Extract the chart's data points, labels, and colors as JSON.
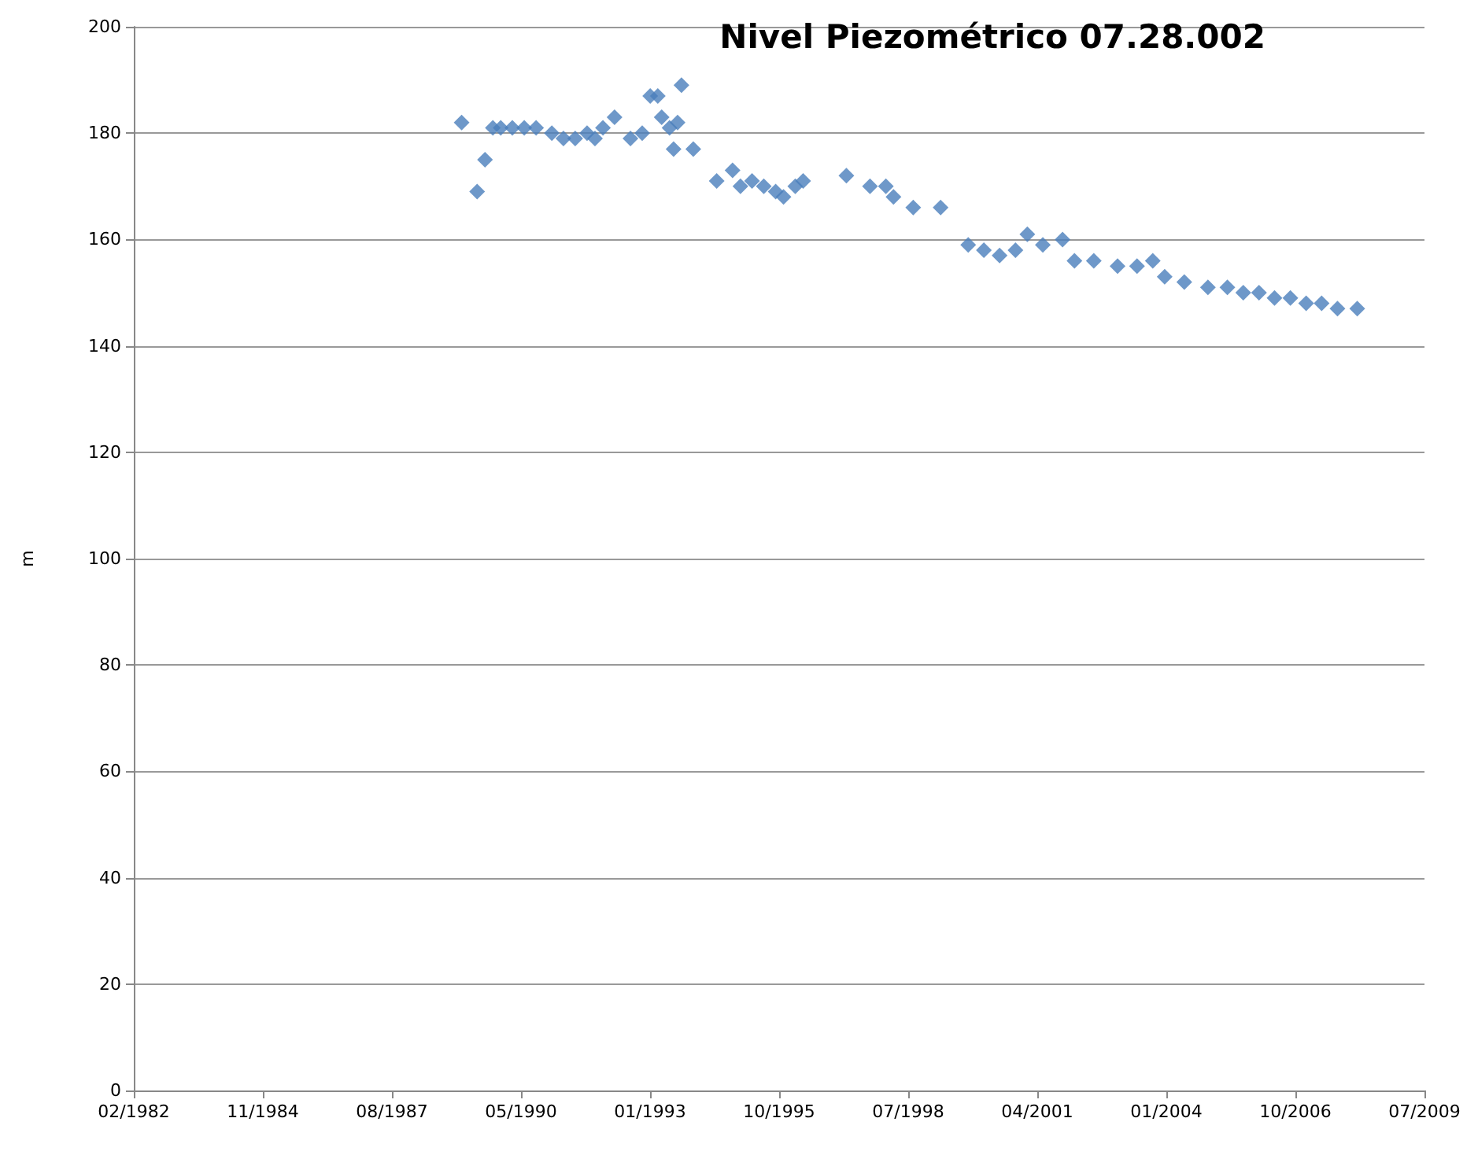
{
  "chart_data": {
    "type": "scatter",
    "title": "Nivel Piezométrico 07.28.002",
    "ylabel": "m",
    "x": [
      "1989-02",
      "1989-06",
      "1989-08",
      "1989-10",
      "1989-12",
      "1990-03",
      "1990-06",
      "1990-09",
      "1991-01",
      "1991-04",
      "1991-07",
      "1991-10",
      "1991-12",
      "1992-02",
      "1992-05",
      "1992-09",
      "1992-12",
      "1993-02",
      "1993-04",
      "1993-05",
      "1993-07",
      "1993-08",
      "1993-09",
      "1993-10",
      "1994-01",
      "1994-07",
      "1994-11",
      "1995-01",
      "1995-04",
      "1995-07",
      "1995-10",
      "1995-12",
      "1996-03",
      "1996-05",
      "1997-04",
      "1997-10",
      "1998-02",
      "1998-04",
      "1998-09",
      "1999-04",
      "1999-11",
      "2000-03",
      "2000-07",
      "2000-11",
      "2001-02",
      "2001-06",
      "2001-11",
      "2002-02",
      "2002-07",
      "2003-01",
      "2003-06",
      "2003-10",
      "2004-01",
      "2004-06",
      "2004-12",
      "2005-05",
      "2005-09",
      "2006-01",
      "2006-05",
      "2006-09",
      "2007-01",
      "2007-05",
      "2007-09",
      "2008-02"
    ],
    "series": [
      {
        "color": "#4a7ebb",
        "values": [
          182,
          169,
          175,
          181,
          181,
          181,
          181,
          181,
          180,
          179,
          179,
          180,
          179,
          181,
          183,
          179,
          180,
          187,
          187,
          183,
          181,
          177,
          182,
          189,
          177,
          171,
          173,
          170,
          171,
          170,
          169,
          168,
          170,
          171,
          172,
          170,
          170,
          168,
          166,
          166,
          159,
          158,
          157,
          158,
          161,
          159,
          160,
          156,
          156,
          155,
          155,
          156,
          153,
          152,
          151,
          151,
          150,
          150,
          149,
          149,
          148,
          148,
          147,
          147
        ]
      }
    ],
    "xlim": [
      "1982-02-18",
      "2009-07-06"
    ],
    "xticks": [
      {
        "value": "1982-02-18",
        "label": "02/1982"
      },
      {
        "value": "1984-11-14",
        "label": "11/1984"
      },
      {
        "value": "1987-08-11",
        "label": "08/1987"
      },
      {
        "value": "1990-05-07",
        "label": "05/1990"
      },
      {
        "value": "1993-01-31",
        "label": "01/1993"
      },
      {
        "value": "1995-10-28",
        "label": "10/1995"
      },
      {
        "value": "1998-07-24",
        "label": "07/1998"
      },
      {
        "value": "2001-04-19",
        "label": "04/2001"
      },
      {
        "value": "2004-01-14",
        "label": "01/2004"
      },
      {
        "value": "2006-10-10",
        "label": "10/2006"
      },
      {
        "value": "2009-07-06",
        "label": "07/2009"
      }
    ],
    "ylim": [
      0,
      200
    ],
    "yticks": [
      0,
      20,
      40,
      60,
      80,
      100,
      120,
      140,
      160,
      180,
      200
    ],
    "grid": "y",
    "marker": "diamond"
  }
}
